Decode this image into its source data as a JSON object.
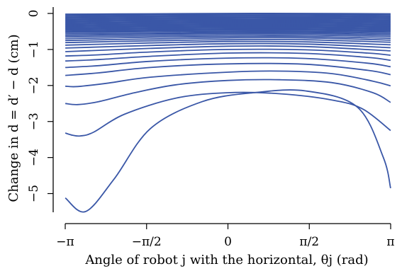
{
  "chart_data": {
    "type": "line",
    "title": "",
    "xlabel": "Angle of robot j with the horizontal, θj (rad)",
    "ylabel": "Change in d = d′ − d (cm)",
    "xlim": [
      -3.14159,
      3.14159
    ],
    "ylim": [
      -5.5,
      0
    ],
    "x_ticks": [
      {
        "value": -3.14159,
        "label": "−π"
      },
      {
        "value": -1.5708,
        "label": "−π/2"
      },
      {
        "value": 0,
        "label": "0"
      },
      {
        "value": 1.5708,
        "label": "π/2"
      },
      {
        "value": 3.14159,
        "label": "π"
      }
    ],
    "y_ticks": [
      {
        "value": 0,
        "label": "0"
      },
      {
        "value": -1,
        "label": "−1"
      },
      {
        "value": -2,
        "label": "−2"
      },
      {
        "value": -3,
        "label": "−3"
      },
      {
        "value": -4,
        "label": "−4"
      },
      {
        "value": -5,
        "label": "−5"
      }
    ],
    "line_color": "#3a57a7",
    "grid": false,
    "series": [
      {
        "x": [
          -3.14,
          -2.75,
          -2.2,
          -1.5,
          -0.5,
          0.5,
          1.5,
          2.5,
          3.0,
          3.14
        ],
        "y": [
          -5.12,
          -5.5,
          -4.6,
          -3.2,
          -2.45,
          -2.2,
          -2.15,
          -2.6,
          -4.0,
          -4.85
        ]
      },
      {
        "x": [
          -3.14,
          -3.0,
          -2.85,
          -2.6,
          -2.0,
          -1.0,
          0.0,
          1.0,
          2.0,
          2.6,
          3.14
        ],
        "y": [
          -3.32,
          -3.38,
          -3.4,
          -3.3,
          -2.8,
          -2.35,
          -2.2,
          -2.23,
          -2.4,
          -2.65,
          -3.25
        ]
      },
      {
        "x": [
          -3.14,
          -2.9,
          -2.5,
          -1.8,
          -1.0,
          0.0,
          1.0,
          2.0,
          2.8,
          3.14
        ],
        "y": [
          -2.5,
          -2.53,
          -2.45,
          -2.2,
          -1.98,
          -1.86,
          -1.84,
          -1.92,
          -2.2,
          -2.47
        ]
      },
      {
        "x": [
          -3.14,
          -2.9,
          -2.3,
          -1.5,
          0.0,
          1.0,
          2.0,
          2.8,
          3.14
        ],
        "y": [
          -2.02,
          -2.03,
          -1.93,
          -1.77,
          -1.63,
          -1.6,
          -1.67,
          -1.88,
          -2.01
        ]
      },
      {
        "x": [
          -3.14,
          -2.5,
          -1.5,
          0.0,
          1.5,
          2.7,
          3.14
        ],
        "y": [
          -1.72,
          -1.65,
          -1.5,
          -1.4,
          -1.41,
          -1.58,
          -1.7
        ]
      },
      {
        "x": [
          -3.14,
          -2.5,
          -1.5,
          0.0,
          1.5,
          2.7,
          3.14
        ],
        "y": [
          -1.5,
          -1.45,
          -1.33,
          -1.24,
          -1.25,
          -1.38,
          -1.48
        ]
      },
      {
        "x": [
          -3.14,
          -2.5,
          -1.5,
          0.0,
          1.5,
          2.7,
          3.14
        ],
        "y": [
          -1.32,
          -1.28,
          -1.19,
          -1.1,
          -1.11,
          -1.22,
          -1.3
        ]
      },
      {
        "x": [
          -3.14,
          -2.5,
          -1.5,
          0.0,
          1.5,
          2.7,
          3.14
        ],
        "y": [
          -1.18,
          -1.15,
          -1.07,
          -1.0,
          -1.01,
          -1.1,
          -1.16
        ]
      },
      {
        "x": [
          -3.14,
          -1.5,
          0.0,
          1.5,
          3.14
        ],
        "y": [
          -1.06,
          -0.97,
          -0.91,
          -0.92,
          -1.04
        ]
      },
      {
        "x": [
          -3.14,
          -1.5,
          0.0,
          1.5,
          3.14
        ],
        "y": [
          -0.96,
          -0.89,
          -0.84,
          -0.85,
          -0.95
        ]
      },
      {
        "x": [
          -3.14,
          -1.5,
          0.0,
          1.5,
          3.14
        ],
        "y": [
          -0.88,
          -0.82,
          -0.78,
          -0.79,
          -0.87
        ]
      },
      {
        "x": [
          -3.14,
          -1.5,
          0.0,
          1.5,
          3.14
        ],
        "y": [
          -0.81,
          -0.76,
          -0.73,
          -0.73,
          -0.8
        ]
      },
      {
        "x": [
          -3.14,
          -1.5,
          0.0,
          1.5,
          3.14
        ],
        "y": [
          -0.75,
          -0.71,
          -0.68,
          -0.68,
          -0.74
        ]
      },
      {
        "x": [
          -3.14,
          -1.5,
          0.0,
          1.5,
          3.14
        ],
        "y": [
          -0.7,
          -0.66,
          -0.64,
          -0.64,
          -0.69
        ]
      },
      {
        "x": [
          -3.14,
          -1.5,
          0.0,
          1.5,
          3.14
        ],
        "y": [
          -0.65,
          -0.62,
          -0.6,
          -0.6,
          -0.64
        ]
      },
      {
        "x": [
          -3.14,
          -1.5,
          0.0,
          1.5,
          3.14
        ],
        "y": [
          -0.61,
          -0.58,
          -0.56,
          -0.56,
          -0.6
        ]
      },
      {
        "x": [
          -3.14,
          -1.5,
          0.0,
          1.5,
          3.14
        ],
        "y": [
          -0.57,
          -0.55,
          -0.53,
          -0.53,
          -0.56
        ]
      },
      {
        "x": [
          -3.14,
          -1.5,
          0.0,
          1.5,
          3.14
        ],
        "y": [
          -0.53,
          -0.51,
          -0.5,
          -0.5,
          -0.52
        ]
      },
      {
        "x": [
          -3.14,
          -1.5,
          0.0,
          1.5,
          3.14
        ],
        "y": [
          -0.5,
          -0.48,
          -0.47,
          -0.47,
          -0.49
        ]
      },
      {
        "x": [
          -3.14,
          -1.5,
          0.0,
          1.5,
          3.14
        ],
        "y": [
          -0.47,
          -0.45,
          -0.44,
          -0.44,
          -0.46
        ]
      },
      {
        "x": [
          -3.14,
          -1.5,
          0.0,
          1.5,
          3.14
        ],
        "y": [
          -0.44,
          -0.42,
          -0.41,
          -0.41,
          -0.43
        ]
      },
      {
        "x": [
          -3.14,
          -1.5,
          0.0,
          1.5,
          3.14
        ],
        "y": [
          -0.41,
          -0.39,
          -0.38,
          -0.38,
          -0.4
        ]
      },
      {
        "x": [
          -3.14,
          -1.5,
          0.0,
          1.5,
          3.14
        ],
        "y": [
          -0.38,
          -0.36,
          -0.35,
          -0.35,
          -0.37
        ]
      },
      {
        "x": [
          -3.14,
          -1.5,
          0.0,
          1.5,
          3.14
        ],
        "y": [
          -0.35,
          -0.33,
          -0.32,
          -0.32,
          -0.34
        ]
      },
      {
        "x": [
          -3.14,
          -1.5,
          0.0,
          1.5,
          3.14
        ],
        "y": [
          -0.32,
          -0.3,
          -0.29,
          -0.29,
          -0.31
        ]
      },
      {
        "x": [
          -3.14,
          -1.5,
          0.0,
          1.5,
          3.14
        ],
        "y": [
          -0.29,
          -0.27,
          -0.26,
          -0.26,
          -0.28
        ]
      },
      {
        "x": [
          -3.14,
          -1.5,
          0.0,
          1.5,
          3.14
        ],
        "y": [
          -0.26,
          -0.24,
          -0.23,
          -0.23,
          -0.25
        ]
      },
      {
        "x": [
          -3.14,
          -1.5,
          0.0,
          1.5,
          3.14
        ],
        "y": [
          -0.23,
          -0.21,
          -0.2,
          -0.2,
          -0.22
        ]
      },
      {
        "x": [
          -3.14,
          -1.5,
          0.0,
          1.5,
          3.14
        ],
        "y": [
          -0.2,
          -0.18,
          -0.17,
          -0.17,
          -0.19
        ]
      },
      {
        "x": [
          -3.14,
          -1.5,
          0.0,
          1.5,
          3.14
        ],
        "y": [
          -0.17,
          -0.15,
          -0.14,
          -0.14,
          -0.16
        ]
      },
      {
        "x": [
          -3.14,
          -1.5,
          0.0,
          1.5,
          3.14
        ],
        "y": [
          -0.14,
          -0.12,
          -0.11,
          -0.11,
          -0.13
        ]
      },
      {
        "x": [
          -3.14,
          -1.5,
          0.0,
          1.5,
          3.14
        ],
        "y": [
          -0.11,
          -0.09,
          -0.08,
          -0.08,
          -0.1
        ]
      },
      {
        "x": [
          -3.14,
          -1.5,
          0.0,
          1.5,
          3.14
        ],
        "y": [
          -0.08,
          -0.06,
          -0.05,
          -0.05,
          -0.07
        ]
      },
      {
        "x": [
          -3.14,
          -1.5,
          0.0,
          1.5,
          3.14
        ],
        "y": [
          -0.05,
          -0.03,
          -0.02,
          -0.02,
          -0.04
        ]
      },
      {
        "x": [
          -3.14,
          -1.5,
          0.0,
          1.5,
          3.14
        ],
        "y": [
          -0.02,
          -0.01,
          0.0,
          0.0,
          -0.01
        ]
      }
    ]
  }
}
